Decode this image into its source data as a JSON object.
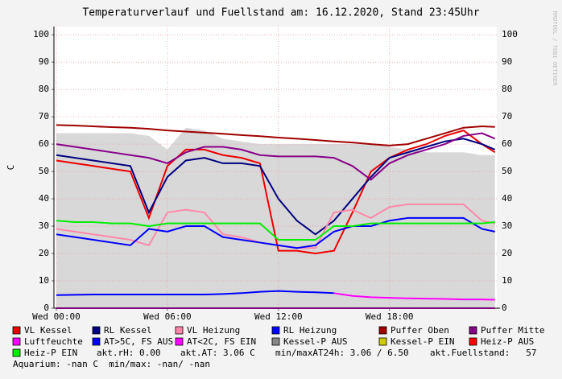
{
  "chart_data": {
    "type": "line",
    "title": "Temperaturverlauf und Fuellstand am: 16.12.2020, Stand 23:45Uhr",
    "y_label": "C",
    "watermark": "RRDTOOL / TOBI OETIKER",
    "x": [
      0,
      1,
      2,
      3,
      4,
      5,
      6,
      7,
      8,
      9,
      10,
      11,
      12,
      13,
      14,
      15,
      16,
      17,
      18,
      19,
      20,
      21,
      22,
      23,
      23.7
    ],
    "xlim": [
      -0.13,
      23.8
    ],
    "xticks": [
      {
        "value": 0,
        "label": "Wed 00:00"
      },
      {
        "value": 6,
        "label": "Wed 06:00"
      },
      {
        "value": 12,
        "label": "Wed 12:00"
      },
      {
        "value": 18,
        "label": "Wed 18:00"
      }
    ],
    "ylim": [
      0,
      103
    ],
    "yticks": [
      0,
      10,
      20,
      30,
      40,
      50,
      60,
      70,
      80,
      90,
      100
    ],
    "grid": true,
    "series": [
      {
        "name": "VL Kessel",
        "color": "#ee0000",
        "values": [
          54,
          53,
          52,
          51,
          50,
          33,
          52,
          58,
          58,
          56,
          55,
          53,
          21,
          21,
          20,
          21,
          35,
          50,
          55,
          58,
          60,
          63,
          65,
          60,
          57
        ]
      },
      {
        "name": "RL Kessel",
        "color": "#000080",
        "values": [
          56,
          55,
          54,
          53,
          52,
          35,
          48,
          54,
          55,
          53,
          53,
          52,
          40,
          32,
          27,
          32,
          40,
          48,
          55,
          57,
          59,
          61,
          62,
          60,
          58
        ]
      },
      {
        "name": "VL Heizung",
        "color": "#ff88aa",
        "values": [
          29,
          28,
          27,
          26,
          25,
          23,
          35,
          36,
          35,
          27,
          26,
          24,
          23,
          22,
          22,
          35,
          36,
          33,
          37,
          38,
          38,
          38,
          38,
          32,
          31
        ]
      },
      {
        "name": "RL Heizung",
        "color": "#0000ff",
        "values": [
          27,
          26,
          25,
          24,
          23,
          29,
          28,
          30,
          30,
          26,
          25,
          24,
          23,
          22,
          23,
          28,
          30,
          30,
          32,
          33,
          33,
          33,
          33,
          29,
          28
        ]
      },
      {
        "name": "Puffer Oben",
        "color": "#a00000",
        "values": [
          67,
          66.8,
          66.5,
          66.2,
          66,
          65.6,
          65,
          64.6,
          64.2,
          63.8,
          63.3,
          62.9,
          62.4,
          62,
          61.5,
          61,
          60.6,
          60,
          59.5,
          60,
          62,
          64,
          66,
          66.5,
          66.3
        ]
      },
      {
        "name": "Puffer Mitte",
        "color": "#880088",
        "values": [
          60,
          59,
          58,
          57,
          56,
          55,
          53,
          57,
          59,
          59,
          58,
          56,
          55.5,
          55.5,
          55.5,
          55,
          52,
          47,
          53,
          56,
          58,
          60,
          63,
          64,
          62
        ]
      },
      {
        "name": "Luftfeuchte",
        "color": "#ff00ff",
        "values": [
          0,
          0,
          0,
          0,
          0,
          0,
          0,
          0,
          0,
          0,
          0,
          0,
          0,
          0,
          0,
          0,
          0,
          0,
          0,
          0,
          0,
          0,
          0,
          0,
          0
        ]
      },
      {
        "name": "AT>5C, FS AUS",
        "color": "#0000ff",
        "values": [
          4.8,
          4.9,
          5,
          5,
          5,
          5,
          5,
          5,
          5,
          5.2,
          5.5,
          6,
          6.3,
          6,
          5.8,
          5.5,
          null,
          null,
          null,
          null,
          null,
          null,
          null,
          null,
          null
        ]
      },
      {
        "name": "AT<2C, FS EIN",
        "color": "#ff00ff",
        "values": [
          null,
          null,
          null,
          null,
          null,
          null,
          null,
          null,
          null,
          null,
          null,
          null,
          null,
          null,
          null,
          5.5,
          4.5,
          4,
          3.8,
          3.6,
          3.5,
          3.4,
          3.2,
          3.2,
          3.1
        ]
      },
      {
        "name": "Kessel-P AUS",
        "color": "#888888",
        "style": "area",
        "values": [
          64,
          64,
          64,
          64,
          64,
          63,
          58,
          66,
          65,
          62,
          61,
          60,
          60,
          60,
          60,
          60,
          60,
          60,
          59,
          58,
          57,
          57,
          57,
          56,
          56
        ]
      },
      {
        "name": "Kessel-P EIN",
        "color": "#cccc00",
        "values": [
          null,
          null,
          null,
          null,
          null,
          null,
          null,
          null,
          null,
          null,
          null,
          null,
          null,
          null,
          null,
          null,
          null,
          null,
          null,
          null,
          null,
          null,
          null,
          null,
          null
        ]
      },
      {
        "name": "Heiz-P AUS",
        "color": "#ff0000",
        "values": [
          null,
          null,
          null,
          null,
          null,
          null,
          null,
          null,
          null,
          null,
          null,
          null,
          null,
          null,
          null,
          null,
          null,
          null,
          null,
          null,
          null,
          null,
          null,
          null,
          null
        ]
      },
      {
        "name": "Heiz-P EIN",
        "color": "#00ee00",
        "values": [
          32,
          31.5,
          31.5,
          31,
          31,
          30,
          31,
          31,
          31,
          31,
          31,
          31,
          25,
          25,
          25,
          30,
          30,
          31,
          31,
          31,
          31,
          31,
          31,
          31,
          31.5
        ]
      }
    ],
    "info": [
      "akt.rH: 0.00",
      "akt.AT: 3.06 C",
      "min/maxAT24h: 3.06 / 6.50",
      "akt.Fuellstand:   57",
      "Aquarium: -nan C  min/max: -nan/ -nan"
    ]
  }
}
